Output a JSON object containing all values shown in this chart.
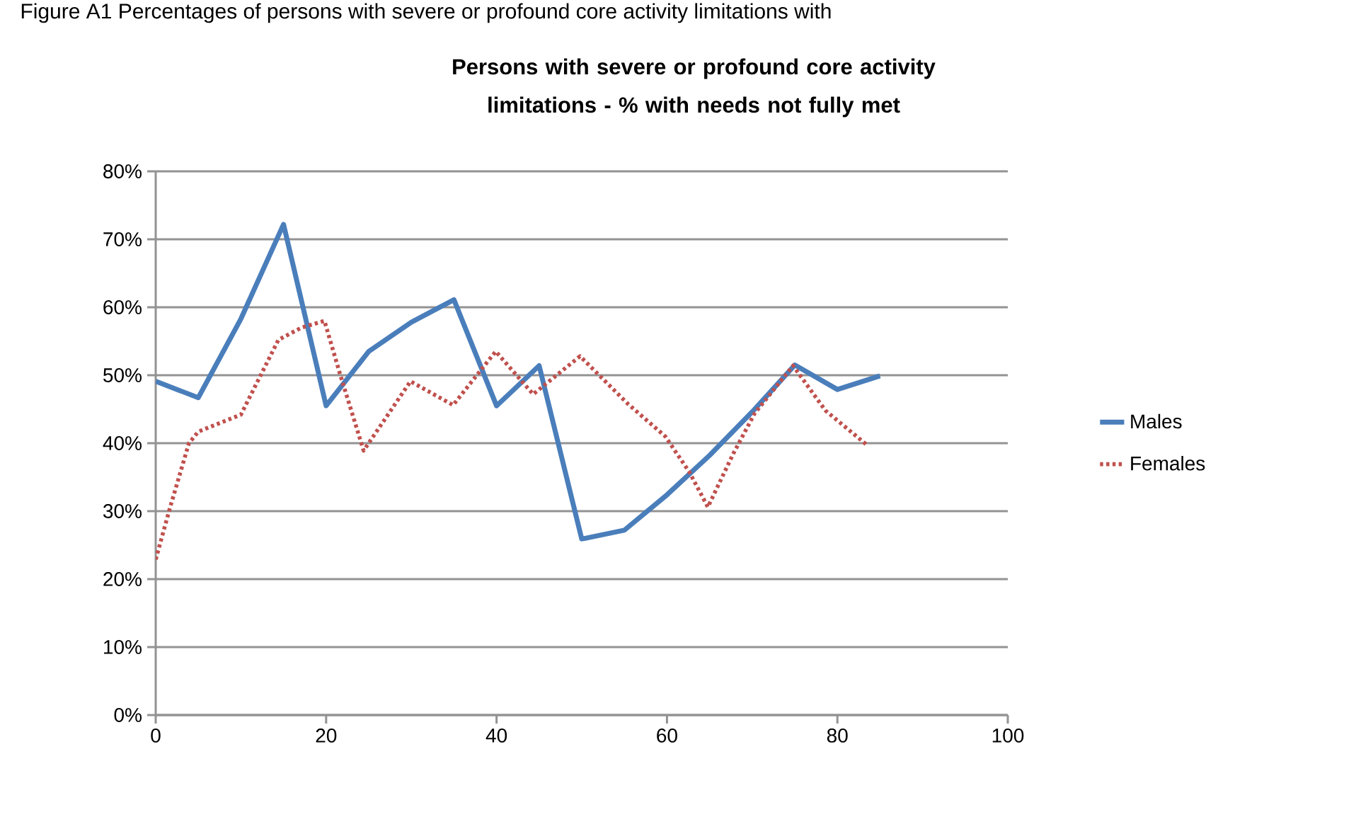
{
  "chart_data": {
    "type": "line",
    "title": "Persons with severe or profound core activity limitations - % with needs not fully met",
    "annotations": [
      "Figure A1 Percentages of persons with severe or profound core activity limitations with"
    ],
    "xlim": [
      0,
      100
    ],
    "xticks": [
      0,
      20,
      40,
      60,
      80,
      100
    ],
    "ylim": [
      0,
      80
    ],
    "yticks": [
      {
        "value": 0,
        "label": "0%"
      },
      {
        "value": 10,
        "label": "10%"
      },
      {
        "value": 20,
        "label": "20%"
      },
      {
        "value": 30,
        "label": "30%"
      },
      {
        "value": 40,
        "label": "40%"
      },
      {
        "value": 50,
        "label": "50%"
      },
      {
        "value": 60,
        "label": "60%"
      },
      {
        "value": 70,
        "label": "70%"
      },
      {
        "value": 80,
        "label": "80%"
      }
    ],
    "grid": "y",
    "legend": "right",
    "series": [
      {
        "name": "Males",
        "color": "#4a7ebb",
        "line_style": "solid",
        "x": [
          0,
          5,
          10,
          15,
          20,
          25,
          30,
          35,
          40,
          45,
          50,
          55,
          60,
          65,
          70,
          75,
          80,
          85
        ],
        "values": [
          49.1,
          46.7,
          58.3,
          72.2,
          45.5,
          53.5,
          57.8,
          61.1,
          45.5,
          51.4,
          25.9,
          27.2,
          32.4,
          38.2,
          44.6,
          51.5,
          47.9,
          49.9
        ]
      },
      {
        "name": "Females",
        "color": "#c0504d",
        "line_style": "dotted",
        "x": [
          0,
          1.7,
          3.9,
          5,
          10,
          14.4,
          17.1,
          19.8,
          21.6,
          24.4,
          29.9,
          34.9,
          39.9,
          44.3,
          49.8,
          55.4,
          59.8,
          62.6,
          64.8,
          67.8,
          70.3,
          74.8,
          78.6,
          83.6
        ],
        "values": [
          22.9,
          30.6,
          40,
          41.7,
          44.2,
          55.2,
          57,
          58,
          50.3,
          38.9,
          49.1,
          45.6,
          53.5,
          47.2,
          52.8,
          45.8,
          41,
          35.8,
          30.6,
          38.5,
          44.4,
          51.4,
          44.8,
          39.6
        ]
      }
    ]
  }
}
